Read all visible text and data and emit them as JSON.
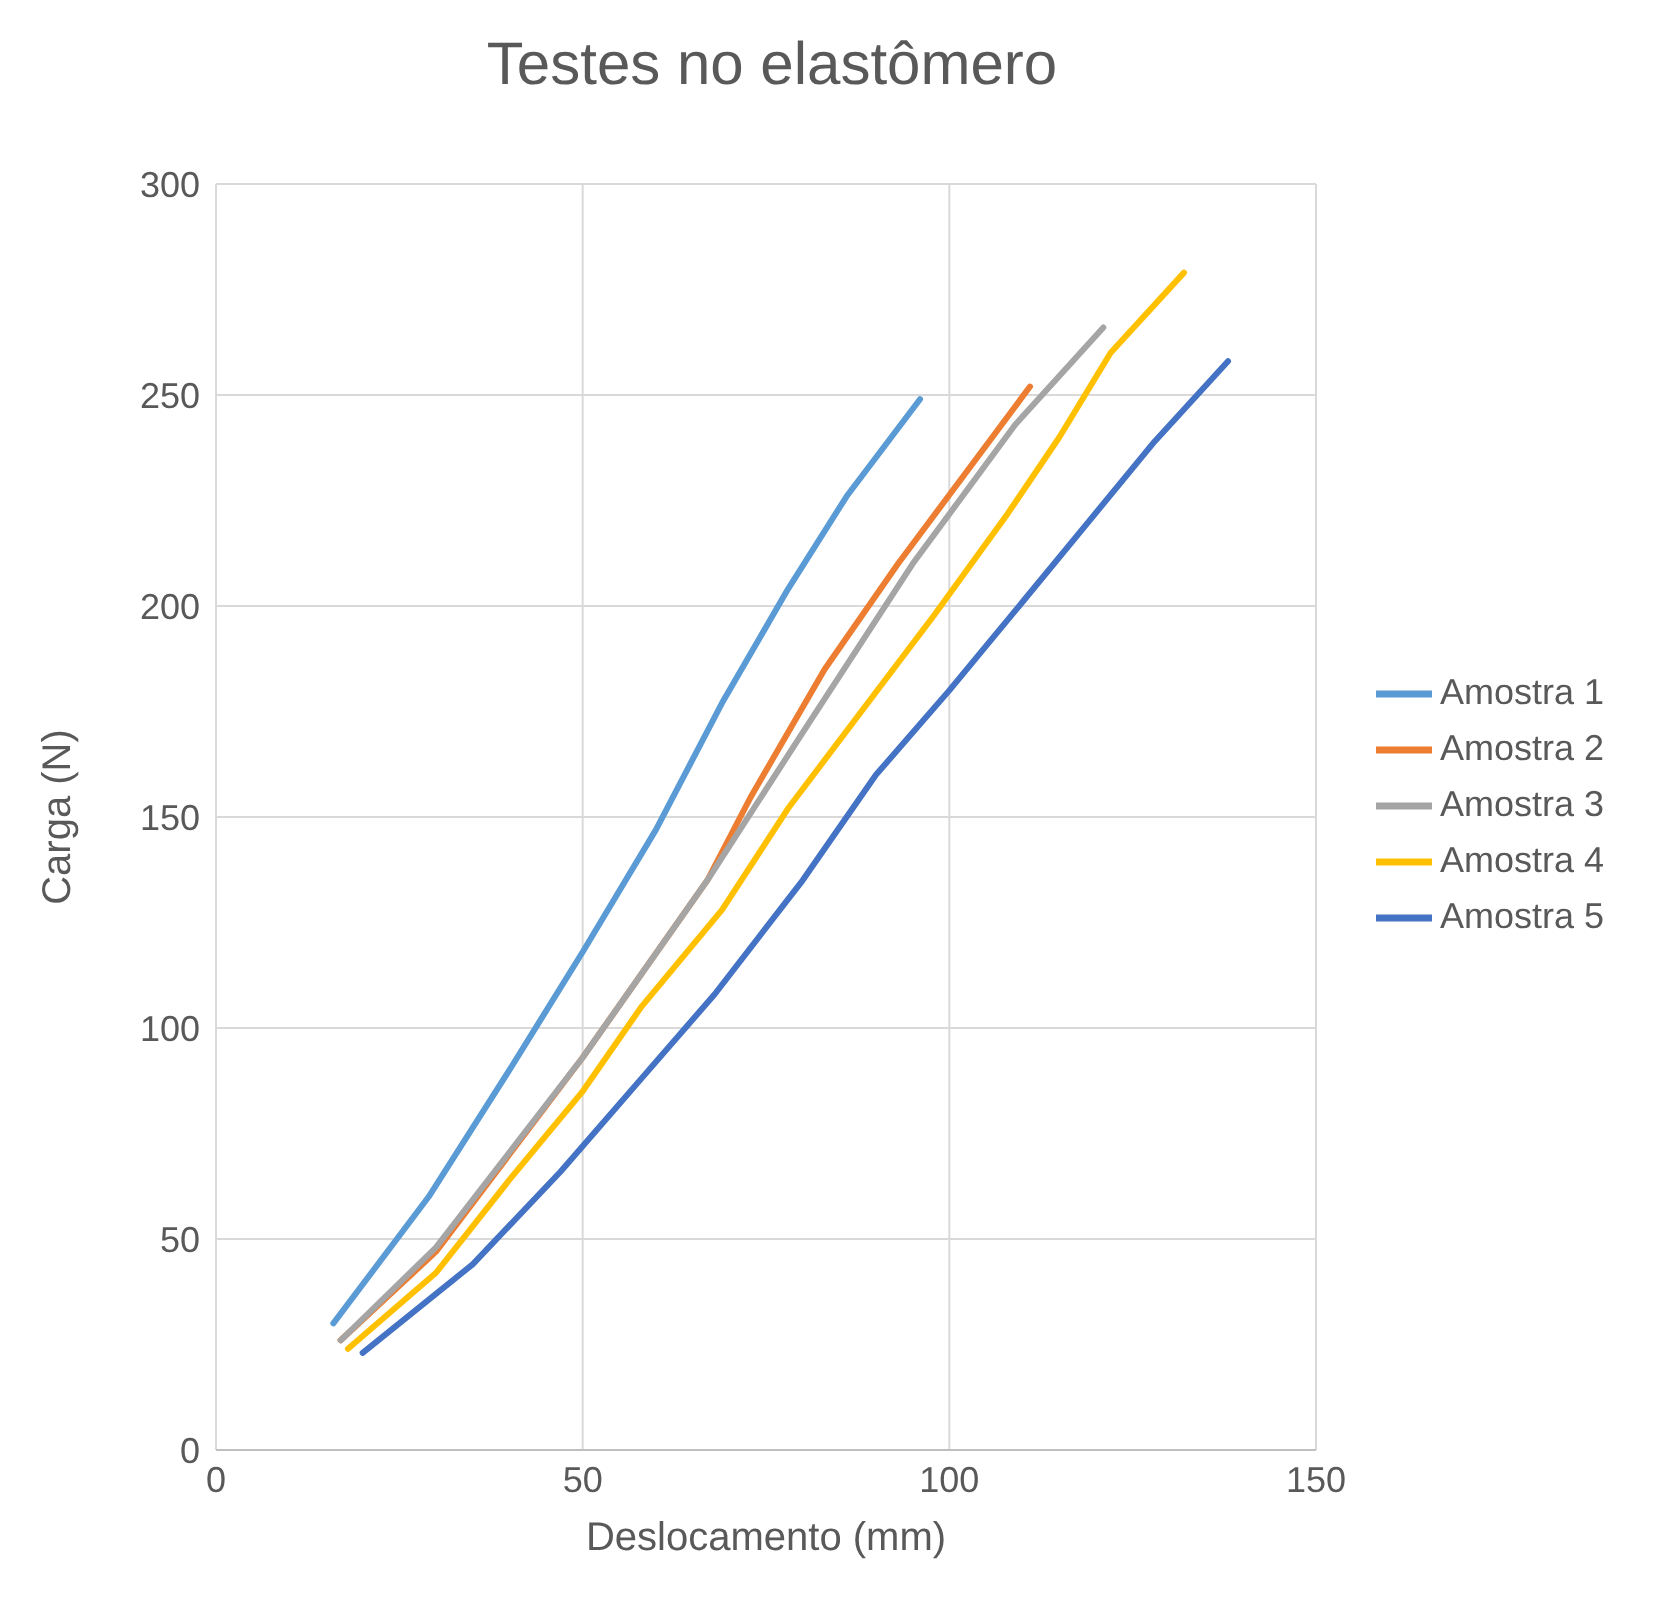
{
  "chart_data": {
    "type": "line",
    "title": "Testes no elastômero",
    "xlabel": "Deslocamento (mm)",
    "ylabel": "Carga (N)",
    "xlim": [
      0,
      150
    ],
    "xticks": [
      0,
      50,
      100,
      150
    ],
    "ylim": [
      0,
      300
    ],
    "yticks": [
      0,
      50,
      100,
      150,
      200,
      250,
      300
    ],
    "grid": true,
    "legend": "right",
    "marker": "none",
    "series": [
      {
        "name": "Amostra 1",
        "color": "#5b9bd5",
        "x": [
          16,
          29,
          40,
          50,
          60,
          69,
          78,
          86,
          96
        ],
        "values": [
          30,
          60,
          90,
          118,
          147,
          177,
          204,
          226,
          249
        ]
      },
      {
        "name": "Amostra 2",
        "color": "#ed7d31",
        "x": [
          17,
          30,
          50,
          67,
          73,
          83,
          93,
          102,
          111
        ],
        "values": [
          26,
          47,
          93,
          135,
          155,
          185,
          210,
          231,
          252
        ]
      },
      {
        "name": "Amostra 3",
        "color": "#a5a5a5",
        "x": [
          17,
          30,
          50,
          67,
          80,
          95,
          109,
          121
        ],
        "values": [
          26,
          48,
          93,
          135,
          170,
          210,
          243,
          266
        ]
      },
      {
        "name": "Amostra 4",
        "color": "#ffc000",
        "x": [
          18,
          30,
          40,
          50,
          58,
          69,
          78,
          88,
          98,
          108,
          115,
          122,
          132
        ],
        "values": [
          24,
          42,
          64,
          85,
          105,
          128,
          152,
          175,
          198,
          222,
          240,
          260,
          279
        ]
      },
      {
        "name": "Amostra 5",
        "color": "#4472c4",
        "x": [
          20,
          35,
          47,
          58,
          68,
          80,
          90,
          100,
          110,
          119,
          128,
          138
        ],
        "values": [
          23,
          44,
          66,
          88,
          108,
          135,
          160,
          180,
          201,
          220,
          239,
          258
        ]
      }
    ]
  }
}
